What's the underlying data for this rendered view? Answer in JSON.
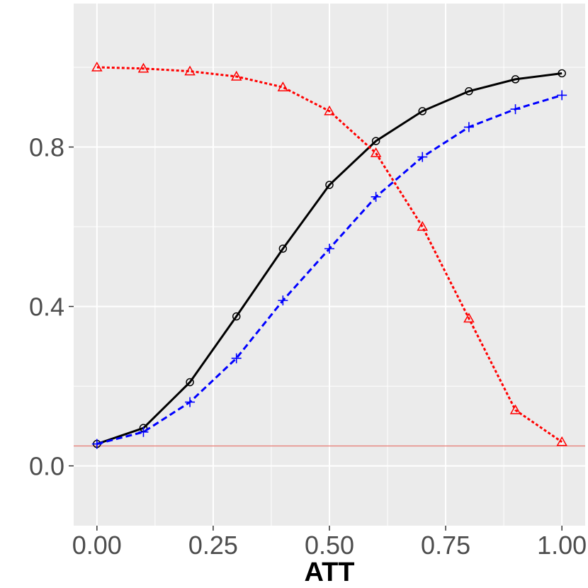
{
  "chart_data": {
    "type": "line",
    "xlabel": "ATT",
    "ylabel": "",
    "title": "",
    "xlim": [
      -0.05,
      1.05
    ],
    "ylim": [
      -0.15,
      1.16
    ],
    "x_ticks": [
      0.0,
      0.25,
      0.5,
      0.75,
      1.0
    ],
    "x_tick_labels": [
      "0.00",
      "0.25",
      "0.50",
      "0.75",
      "1.00"
    ],
    "x_minor_ticks": [
      0.125,
      0.375,
      0.625,
      0.875
    ],
    "y_ticks": [
      0.0,
      0.4,
      0.8
    ],
    "y_tick_labels": [
      "0.0",
      "0.4",
      "0.8"
    ],
    "y_minor_ticks": [
      0.2,
      0.6,
      1.0
    ],
    "grid": true,
    "legend": "none",
    "reference_line": {
      "y": 0.05,
      "color": "#e8776f"
    },
    "x": [
      0.0,
      0.1,
      0.2,
      0.3,
      0.4,
      0.5,
      0.6,
      0.7,
      0.8,
      0.9,
      1.0
    ],
    "series": [
      {
        "color": "#000000",
        "dash": "solid",
        "marker": "circle",
        "values": [
          0.055,
          0.095,
          0.21,
          0.375,
          0.545,
          0.705,
          0.815,
          0.89,
          0.94,
          0.97,
          0.985
        ]
      },
      {
        "color": "#0000ff",
        "dash": "dashed",
        "marker": "plus",
        "values": [
          0.055,
          0.085,
          0.16,
          0.27,
          0.415,
          0.545,
          0.675,
          0.775,
          0.85,
          0.895,
          0.93
        ]
      },
      {
        "color": "#ff0000",
        "dash": "dotted",
        "marker": "triangle",
        "values": [
          1.0,
          0.997,
          0.99,
          0.977,
          0.95,
          0.89,
          0.785,
          0.6,
          0.37,
          0.14,
          0.06
        ]
      }
    ]
  }
}
